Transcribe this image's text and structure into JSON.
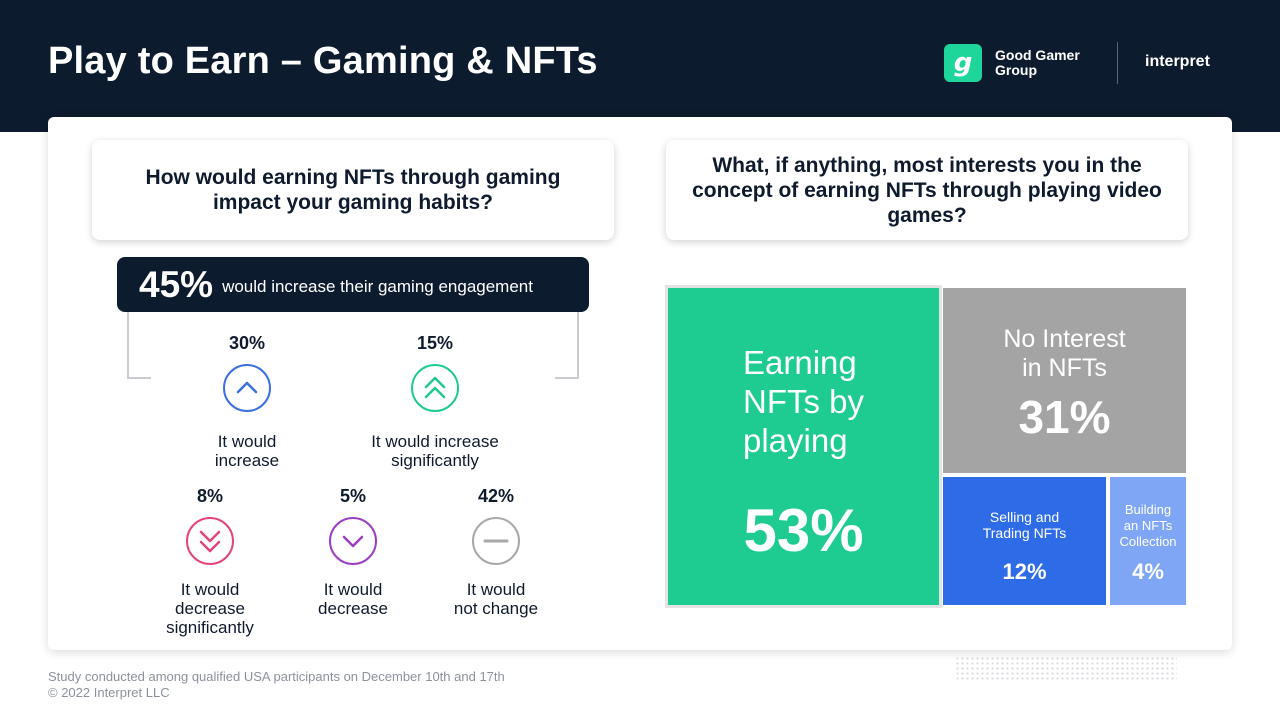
{
  "header": {
    "title": "Play to Earn – Gaming & NFTs",
    "brand_logo_letter": "g",
    "brand_name_line1": "Good Gamer",
    "brand_name_line2": "Group",
    "partner": "interpret"
  },
  "left": {
    "question": "How would earning NFTs through gaming impact your gaming habits?",
    "summary_pct": "45%",
    "summary_text": "would increase their gaming engagement",
    "stats": [
      {
        "pct": "30%",
        "label_line1": "It would",
        "label_line2": "increase",
        "label_line3": "",
        "icon": "chevron-up-icon",
        "color": "#3a6fe0"
      },
      {
        "pct": "15%",
        "label_line1": "It would increase",
        "label_line2": "significantly",
        "label_line3": "",
        "icon": "double-chevron-up-icon",
        "color": "#21c98f"
      },
      {
        "pct": "8%",
        "label_line1": "It would",
        "label_line2": "decrease",
        "label_line3": "significantly",
        "icon": "double-chevron-down-icon",
        "color": "#e2457e"
      },
      {
        "pct": "5%",
        "label_line1": "It would",
        "label_line2": "decrease",
        "label_line3": "",
        "icon": "chevron-down-icon",
        "color": "#9b3fbf"
      },
      {
        "pct": "42%",
        "label_line1": "It would",
        "label_line2": "not change",
        "label_line3": "",
        "icon": "minus-icon",
        "color": "#a8a8a8"
      }
    ]
  },
  "right": {
    "question": "What, if anything, most interests you in the concept of earning NFTs through playing video games?",
    "tiles": [
      {
        "label_lines": [
          "Earning",
          "NFTs by",
          "playing"
        ],
        "pct": "53%",
        "value": 53,
        "color": "#1ecb90"
      },
      {
        "label_lines": [
          "No Interest",
          "in NFTs"
        ],
        "pct": "31%",
        "value": 31,
        "color": "#a4a4a4"
      },
      {
        "label_lines": [
          "Selling and",
          "Trading NFTs"
        ],
        "pct": "12%",
        "value": 12,
        "color": "#2e6be6"
      },
      {
        "label_lines": [
          "Building",
          "an NFTs",
          "Collection"
        ],
        "pct": "4%",
        "value": 4,
        "color": "#7fa6f5"
      }
    ]
  },
  "footer": {
    "line1": "Study conducted among qualified USA participants on December 10th and 17th",
    "line2": "© 2022 Interpret LLC"
  }
}
